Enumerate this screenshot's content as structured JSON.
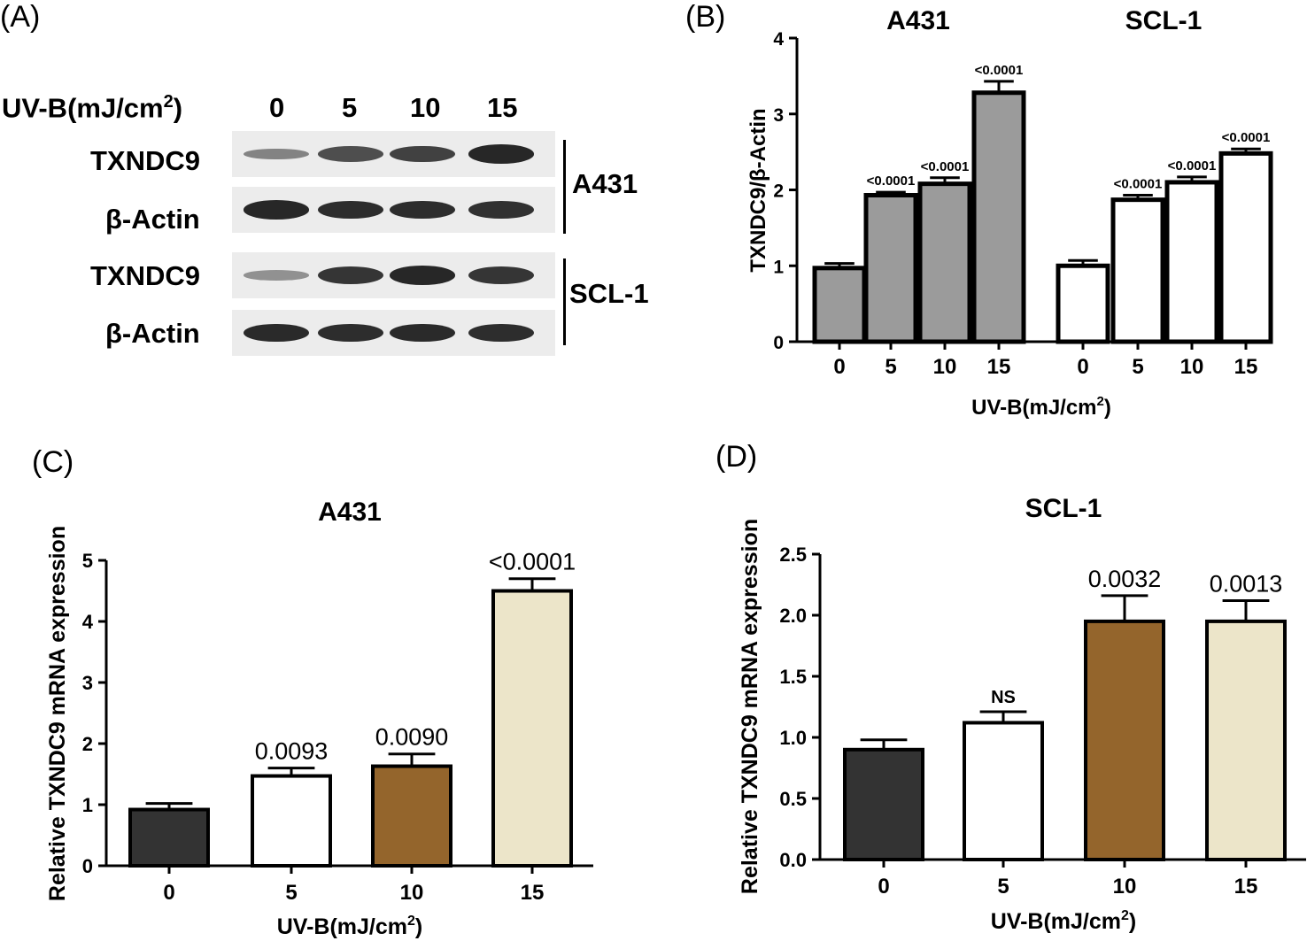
{
  "figure": {
    "panels": [
      "(A)",
      "(B)",
      "(C)",
      "(D)"
    ]
  },
  "western_blot": {
    "uv_label": "UV-B(mJ/cm",
    "uv_sup": "2",
    "uv_close": ")",
    "doses": [
      "0",
      "5",
      "10",
      "15"
    ],
    "rows": [
      "TXNDC9",
      "β-Actin",
      "TXNDC9",
      "β-Actin"
    ],
    "groups": [
      "A431",
      "SCL-1"
    ],
    "band_intensity": [
      [
        0.35,
        0.7,
        0.78,
        0.95
      ],
      [
        0.95,
        0.9,
        0.9,
        0.88
      ],
      [
        0.25,
        0.85,
        0.95,
        0.85
      ],
      [
        0.92,
        0.9,
        0.92,
        0.9
      ]
    ]
  },
  "chart_data": [
    {
      "type": "bar",
      "title": "",
      "group_titles": [
        "A431",
        "SCL-1"
      ],
      "ylabel": "TXNDC9/β-Actin",
      "xlabel": "UV-B(mJ/cm",
      "xlabel_sup": "2",
      "xlabel_close": ")",
      "ylim": [
        0,
        4
      ],
      "yticks": [
        "0",
        "1",
        "2",
        "3",
        "4"
      ],
      "categories": [
        "0",
        "5",
        "10",
        "15"
      ],
      "series": [
        {
          "name": "A431",
          "values": [
            0.97,
            1.93,
            2.08,
            3.28
          ],
          "errors": [
            0.06,
            0.04,
            0.08,
            0.15
          ],
          "labels": [
            "",
            "<0.0001",
            "<0.0001",
            "<0.0001"
          ],
          "color": "#9b9b9b"
        },
        {
          "name": "SCL-1",
          "values": [
            1.0,
            1.87,
            2.1,
            2.48
          ],
          "errors": [
            0.07,
            0.06,
            0.07,
            0.06
          ],
          "labels": [
            "",
            "<0.0001",
            "<0.0001",
            "<0.0001"
          ],
          "color": "#ffffff"
        }
      ]
    },
    {
      "type": "bar",
      "title": "A431",
      "ylabel": "Relative TXNDC9 mRNA expression",
      "xlabel": "UV-B(mJ/cm",
      "xlabel_sup": "2",
      "xlabel_close": ")",
      "ylim": [
        0,
        5
      ],
      "yticks": [
        "0",
        "1",
        "2",
        "3",
        "4",
        "5"
      ],
      "categories": [
        "0",
        "5",
        "10",
        "15"
      ],
      "values": [
        0.92,
        1.47,
        1.63,
        4.5
      ],
      "errors": [
        0.1,
        0.13,
        0.2,
        0.2
      ],
      "labels": [
        "",
        "0.0093",
        "0.0090",
        "<0.0001"
      ],
      "colors": [
        "#333333",
        "#ffffff",
        "#94652c",
        "#ece5c9"
      ]
    },
    {
      "type": "bar",
      "title": "SCL-1",
      "ylabel": "Relative TXNDC9 mRNA expression",
      "xlabel": "UV-B(mJ/cm",
      "xlabel_sup": "2",
      "xlabel_close": ")",
      "ylim": [
        0,
        2.5
      ],
      "yticks": [
        "0.0",
        "0.5",
        "1.0",
        "1.5",
        "2.0",
        "2.5"
      ],
      "categories": [
        "0",
        "5",
        "10",
        "15"
      ],
      "values": [
        0.9,
        1.12,
        1.95,
        1.95
      ],
      "errors": [
        0.08,
        0.09,
        0.21,
        0.17
      ],
      "labels": [
        "",
        "NS",
        "0.0032",
        "0.0013"
      ],
      "colors": [
        "#333333",
        "#ffffff",
        "#94652c",
        "#ece5c9"
      ]
    }
  ]
}
